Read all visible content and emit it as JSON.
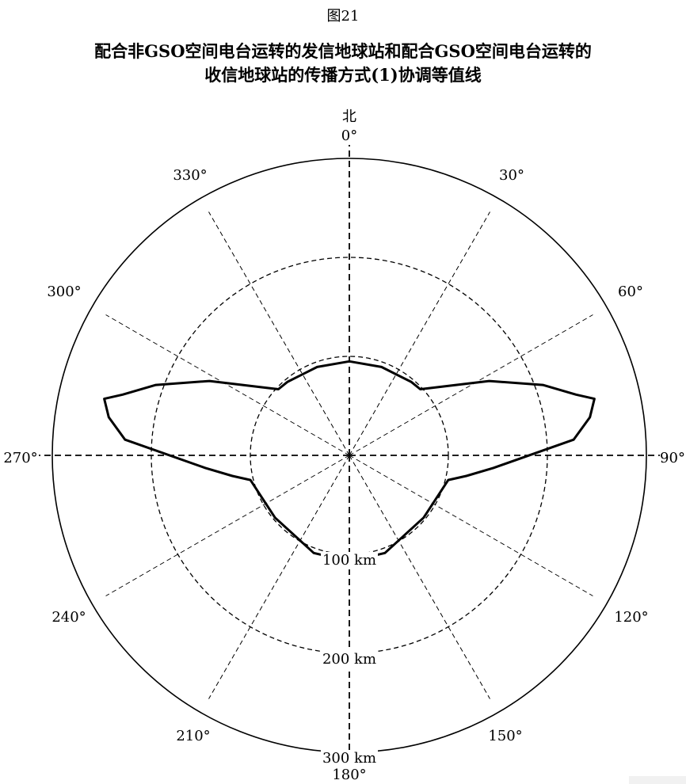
{
  "figure": {
    "label": "图21",
    "title_line1": "配合非GSO空间电台运转的发信地球站和配合GSO空间电台运转的",
    "title_line2": "收信地球站的传播方式(1)协调等值线"
  },
  "chart_data": {
    "type": "polar",
    "north_label": "北",
    "angle_labels": [
      {
        "deg": 0,
        "text": "0°"
      },
      {
        "deg": 30,
        "text": "30°"
      },
      {
        "deg": 60,
        "text": "60°"
      },
      {
        "deg": 90,
        "text": "90°"
      },
      {
        "deg": 120,
        "text": "120°"
      },
      {
        "deg": 150,
        "text": "150°"
      },
      {
        "deg": 180,
        "text": "180°"
      },
      {
        "deg": 210,
        "text": "210°"
      },
      {
        "deg": 240,
        "text": "240°"
      },
      {
        "deg": 270,
        "text": "270°"
      },
      {
        "deg": 300,
        "text": "300°"
      },
      {
        "deg": 330,
        "text": "330°"
      }
    ],
    "rings": [
      {
        "km": 100,
        "label": "100 km"
      },
      {
        "km": 200,
        "label": "200 km"
      },
      {
        "km": 300,
        "label": "300 km"
      }
    ],
    "radial_range_km": [
      0,
      300
    ],
    "contour_unit": "km",
    "contour": [
      {
        "az": 0,
        "km": 95
      },
      {
        "az": 20,
        "km": 95
      },
      {
        "az": 40,
        "km": 97
      },
      {
        "az": 47,
        "km": 98
      },
      {
        "az": 53,
        "km": 115
      },
      {
        "az": 62,
        "km": 160
      },
      {
        "az": 70,
        "km": 208
      },
      {
        "az": 75,
        "km": 237
      },
      {
        "az": 77,
        "km": 254
      },
      {
        "az": 81,
        "km": 246
      },
      {
        "az": 86,
        "km": 227
      },
      {
        "az": 95,
        "km": 146
      },
      {
        "az": 100,
        "km": 120
      },
      {
        "az": 104,
        "km": 103
      },
      {
        "az": 130,
        "km": 98
      },
      {
        "az": 160,
        "km": 105
      },
      {
        "az": 180,
        "km": 107
      },
      {
        "az": 200,
        "km": 105
      },
      {
        "az": 230,
        "km": 98
      },
      {
        "az": 256,
        "km": 103
      },
      {
        "az": 260,
        "km": 120
      },
      {
        "az": 265,
        "km": 146
      },
      {
        "az": 274,
        "km": 227
      },
      {
        "az": 279,
        "km": 246
      },
      {
        "az": 283,
        "km": 254
      },
      {
        "az": 285,
        "km": 237
      },
      {
        "az": 290,
        "km": 208
      },
      {
        "az": 298,
        "km": 160
      },
      {
        "az": 307,
        "km": 115
      },
      {
        "az": 313,
        "km": 98
      },
      {
        "az": 320,
        "km": 97
      },
      {
        "az": 340,
        "km": 95
      }
    ]
  }
}
